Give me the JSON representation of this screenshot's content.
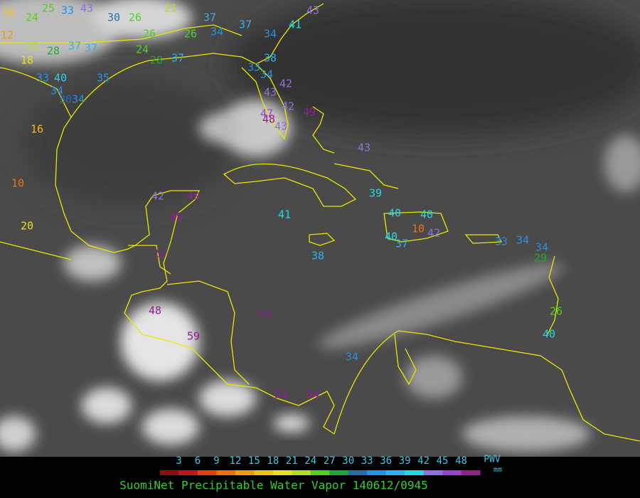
{
  "title": "SuomiNet Precipitable Water Vapor 140612/0945",
  "legend": {
    "unit_top": "PWV",
    "unit_bottom": "mm",
    "ticks": [
      3,
      6,
      9,
      12,
      15,
      18,
      21,
      24,
      27,
      30,
      33,
      36,
      39,
      42,
      45,
      48
    ],
    "colors": [
      "#8a1010",
      "#c01818",
      "#e04010",
      "#e87010",
      "#f09a10",
      "#f0c010",
      "#e8e020",
      "#b0e020",
      "#50d020",
      "#20a830",
      "#2070b0",
      "#2890e0",
      "#30b0f0",
      "#20d8e8",
      "#9070e0",
      "#a040d0",
      "#902090"
    ]
  },
  "stations": [
    {
      "value": 16
    },
    {
      "value": 24
    },
    {
      "value": 25
    },
    {
      "value": 33
    },
    {
      "value": 43
    },
    {
      "value": 30
    },
    {
      "value": 26
    },
    {
      "value": 21
    },
    {
      "value": 37
    },
    {
      "value": 37
    },
    {
      "value": 34
    },
    {
      "value": 34
    },
    {
      "value": 26
    },
    {
      "value": 26
    },
    {
      "value": 12
    },
    {
      "value": 21
    },
    {
      "value": 28
    },
    {
      "value": 37
    },
    {
      "value": 37
    },
    {
      "value": 18
    },
    {
      "value": 33
    },
    {
      "value": 40
    },
    {
      "value": 34
    },
    {
      "value": 30
    },
    {
      "value": 34
    },
    {
      "value": 35
    },
    {
      "value": 24
    },
    {
      "value": 28
    },
    {
      "value": 37
    },
    {
      "value": 38
    },
    {
      "value": 33
    },
    {
      "value": 34
    },
    {
      "value": 42
    },
    {
      "value": 43
    },
    {
      "value": 42
    },
    {
      "value": 47
    },
    {
      "value": 48
    },
    {
      "value": 43
    },
    {
      "value": 49
    },
    {
      "value": 41
    },
    {
      "value": 43
    },
    {
      "value": 43
    },
    {
      "value": 16
    },
    {
      "value": 10
    },
    {
      "value": 20
    },
    {
      "value": 42
    },
    {
      "value": 49
    },
    {
      "value": 49
    },
    {
      "value": 57
    },
    {
      "value": 41
    },
    {
      "value": 39
    },
    {
      "value": 40
    },
    {
      "value": 40
    },
    {
      "value": 10
    },
    {
      "value": 40
    },
    {
      "value": 37
    },
    {
      "value": 42
    },
    {
      "value": 38
    },
    {
      "value": 33
    },
    {
      "value": 34
    },
    {
      "value": 34
    },
    {
      "value": 29
    },
    {
      "value": 26
    },
    {
      "value": 40
    },
    {
      "value": 48
    },
    {
      "value": 53
    },
    {
      "value": 59
    },
    {
      "value": 34
    },
    {
      "value": 53
    },
    {
      "value": 54
    }
  ]
}
